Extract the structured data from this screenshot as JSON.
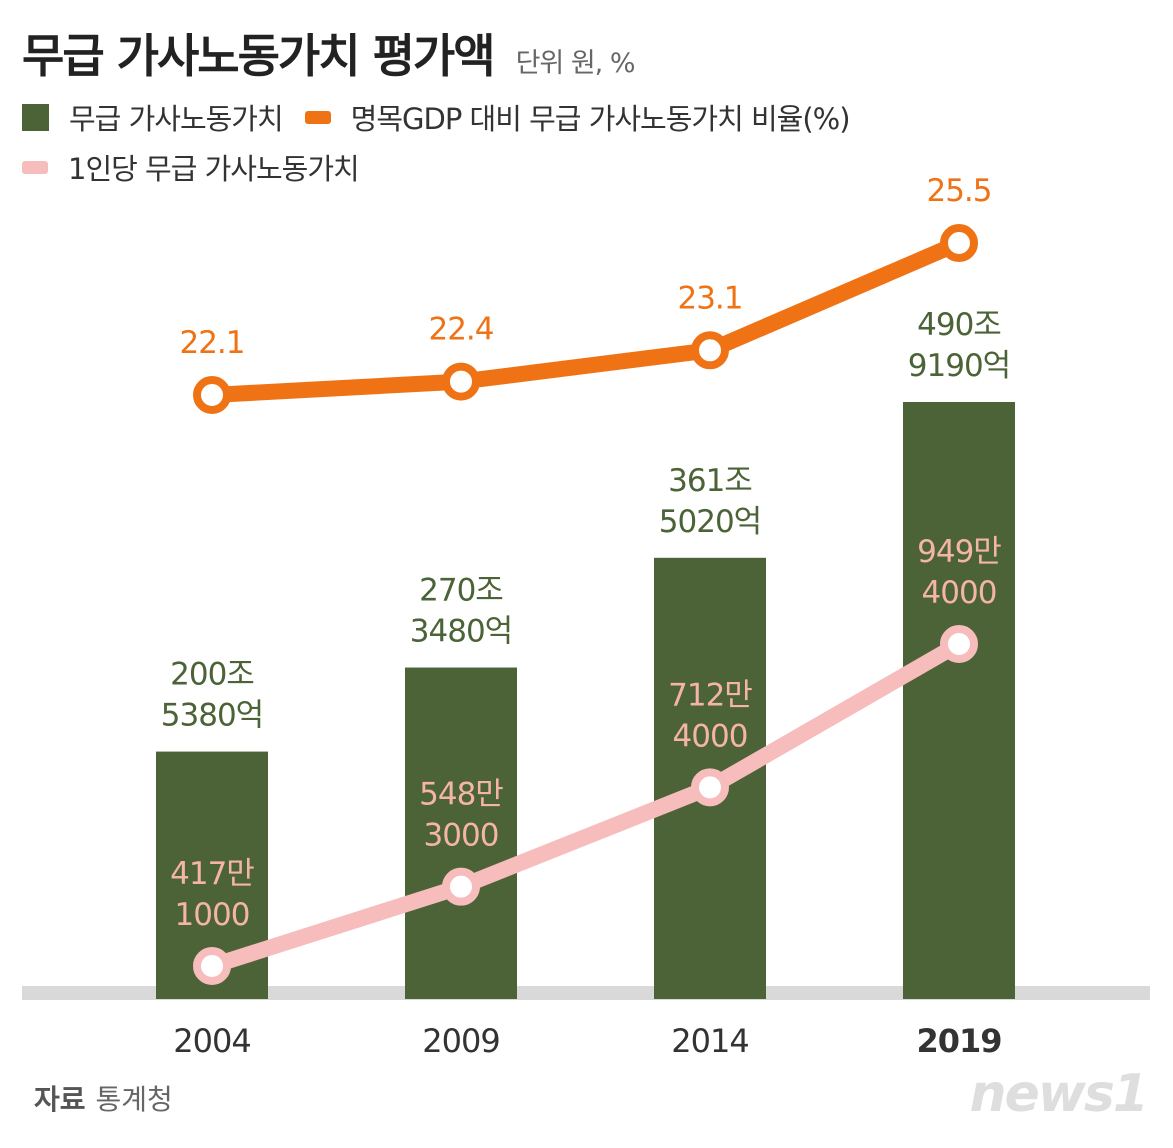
{
  "title": "무급 가사노동가치 평가액",
  "unit": "단위  원, %",
  "legend": {
    "bar": "무급 가사노동가치",
    "line": "명목GDP 대비 무급 가사노동가치 비율(%)",
    "pink": "1인당 무급 가사노동가치"
  },
  "source_label": "자료",
  "source_value": "통계청",
  "logo": "news1",
  "colors": {
    "bar": "#4b6336",
    "line": "#ef7314",
    "pink": "#f7bcbc",
    "pink_label": "#f4b4a6",
    "baseline": "#d9d9d9"
  },
  "chart_data": {
    "type": "bar",
    "categories": [
      "2004",
      "2009",
      "2014",
      "2019"
    ],
    "series": [
      {
        "name": "무급 가사노동가치",
        "type": "bar",
        "values": [
          2005380,
          2703480,
          3615020,
          4909190
        ],
        "unit": "억 원",
        "labels": [
          [
            "200조",
            "5380억"
          ],
          [
            "270조",
            "3480억"
          ],
          [
            "361조",
            "5020억"
          ],
          [
            "490조",
            "9190억"
          ]
        ]
      },
      {
        "name": "명목GDP 대비 무급 가사노동가치 비율(%)",
        "type": "line",
        "values": [
          22.1,
          22.4,
          23.1,
          25.5
        ],
        "labels": [
          "22.1",
          "22.4",
          "23.1",
          "25.5"
        ]
      },
      {
        "name": "1인당 무급 가사노동가치",
        "type": "line",
        "values": [
          4171000,
          5483000,
          7124000,
          9494000
        ],
        "unit": "원",
        "labels": [
          [
            "417만",
            "1000"
          ],
          [
            "548만",
            "3000"
          ],
          [
            "712만",
            "4000"
          ],
          [
            "949만",
            "4000"
          ]
        ]
      }
    ]
  }
}
